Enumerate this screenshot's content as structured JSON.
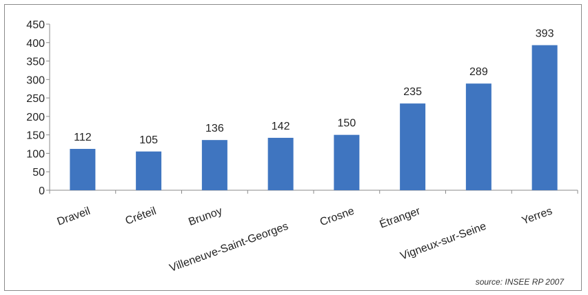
{
  "chart_data": {
    "type": "bar",
    "categories": [
      "Draveil",
      "Créteil",
      "Brunoy",
      "Villeneuve-Saint-Georges",
      "Crosne",
      "Étranger",
      "Vigneux-sur-Seine",
      "Yerres"
    ],
    "values": [
      112,
      105,
      136,
      142,
      150,
      235,
      289,
      393
    ],
    "data_labels": [
      "112",
      "105",
      "136",
      "142",
      "150",
      "235",
      "289",
      "393"
    ],
    "title": "",
    "xlabel": "",
    "ylabel": "",
    "ylim": [
      0,
      450
    ],
    "yticks": [
      0,
      50,
      100,
      150,
      200,
      250,
      300,
      350,
      400,
      450
    ],
    "grid": false,
    "legend": "none",
    "bar_color": "#3f75c0",
    "x_tick_rotation_deg": -20
  },
  "source_note": "source: INSEE RP 2007"
}
